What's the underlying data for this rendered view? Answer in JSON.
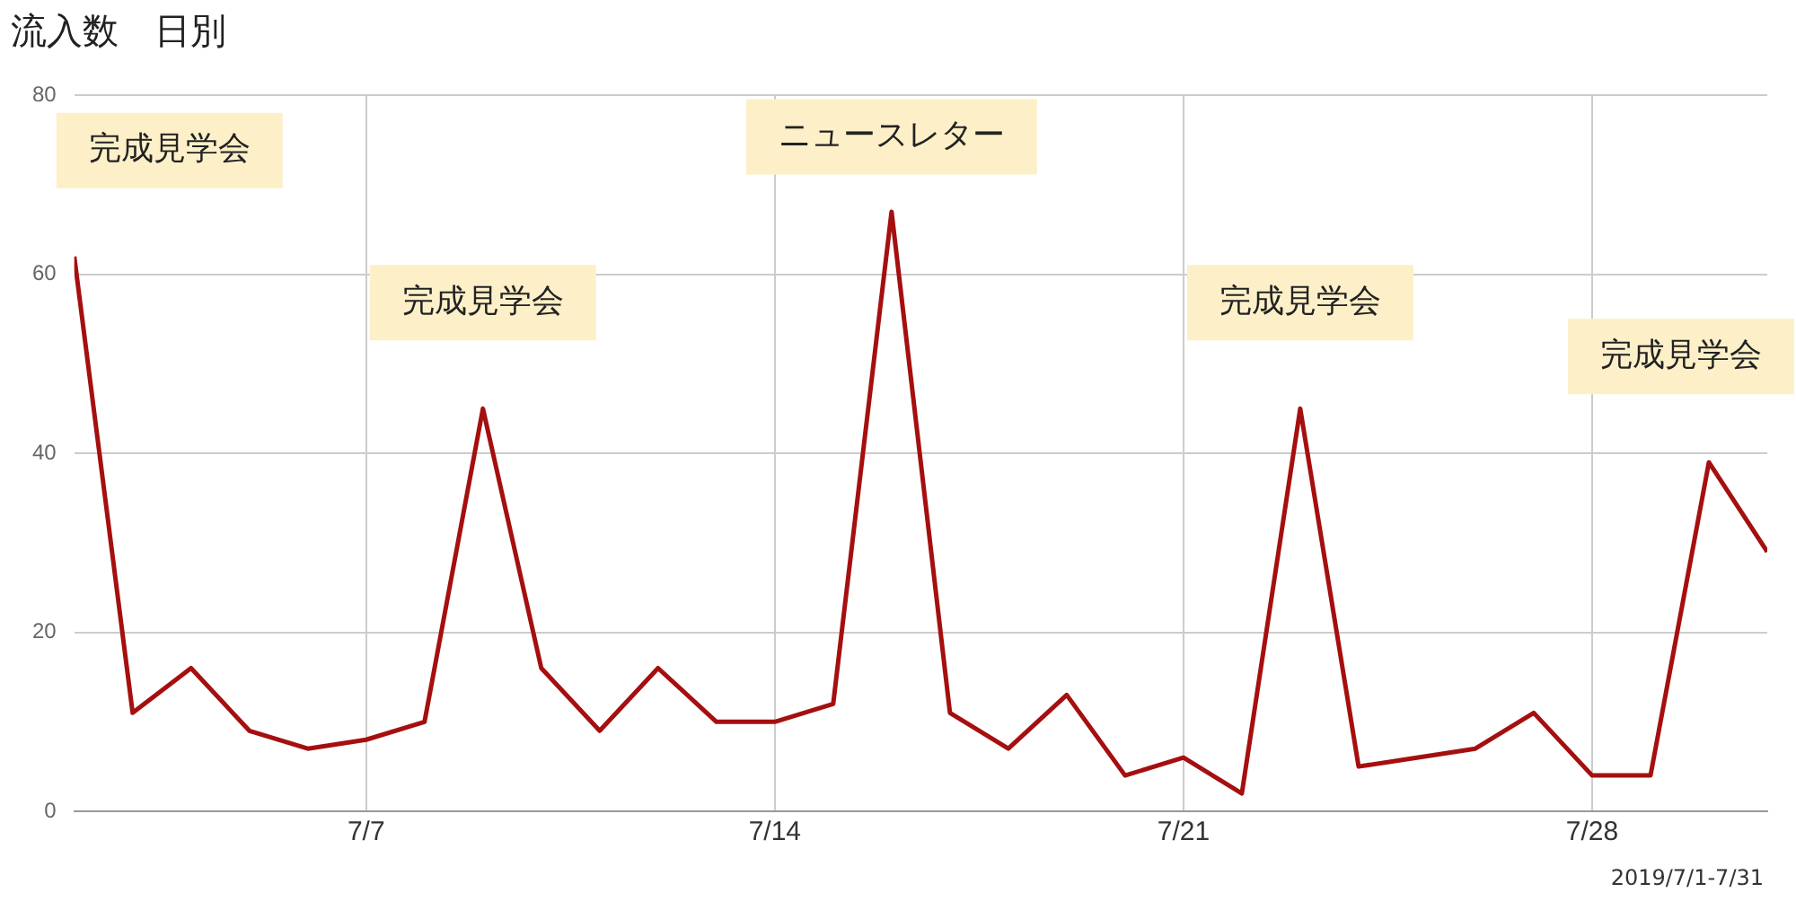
{
  "chart_data": {
    "type": "line",
    "title": "流入数　日別",
    "x": [
      "--07-02",
      "--07-03",
      "--07-04",
      "--07-05",
      "--07-06",
      "--07-07",
      "--07-08",
      "--07-09",
      "--07-10",
      "--07-11",
      "--07-12",
      "--07-13",
      "--07-14",
      "--07-15",
      "--07-16",
      "--07-17",
      "--07-18",
      "--07-19",
      "--07-20",
      "--07-21",
      "--07-22",
      "--07-23",
      "--07-24",
      "--07-25",
      "--07-26",
      "--07-27",
      "--07-28",
      "--07-29",
      "--07-30",
      "--07-31"
    ],
    "series": [
      {
        "color": "#a50f0f",
        "values": [
          62,
          11,
          16,
          9,
          7,
          8,
          10,
          45,
          16,
          9,
          16,
          10,
          10,
          12,
          67,
          11,
          7,
          13,
          4,
          6,
          2,
          45,
          5,
          6,
          7,
          11,
          4,
          4,
          39,
          29
        ]
      }
    ],
    "xlim": [
      "--07-02",
      "--07-31"
    ],
    "xticks": [
      {
        "value": "--07-07",
        "label": "7/7"
      },
      {
        "value": "--07-14",
        "label": "7/14"
      },
      {
        "value": "--07-21",
        "label": "7/21"
      },
      {
        "value": "--07-28",
        "label": "7/28"
      }
    ],
    "ylim": [
      0,
      80
    ],
    "yticks": [
      0,
      20,
      40,
      60,
      80
    ],
    "grid": true,
    "marker": "none",
    "line_style": "solid",
    "legend": false,
    "annotations": [
      {
        "text": "完成見学会",
        "x": "--07-02",
        "y": 62
      },
      {
        "text": "完成見学会",
        "x": "--07-09",
        "y": 45
      },
      {
        "text": "ニュースレター",
        "x": "--07-16",
        "y": 67
      },
      {
        "text": "完成見学会",
        "x": "--07-23",
        "y": 45
      },
      {
        "text": "完成見学会",
        "x": "--07-30",
        "y": 39
      },
      "2019/7/1-7/31"
    ]
  }
}
